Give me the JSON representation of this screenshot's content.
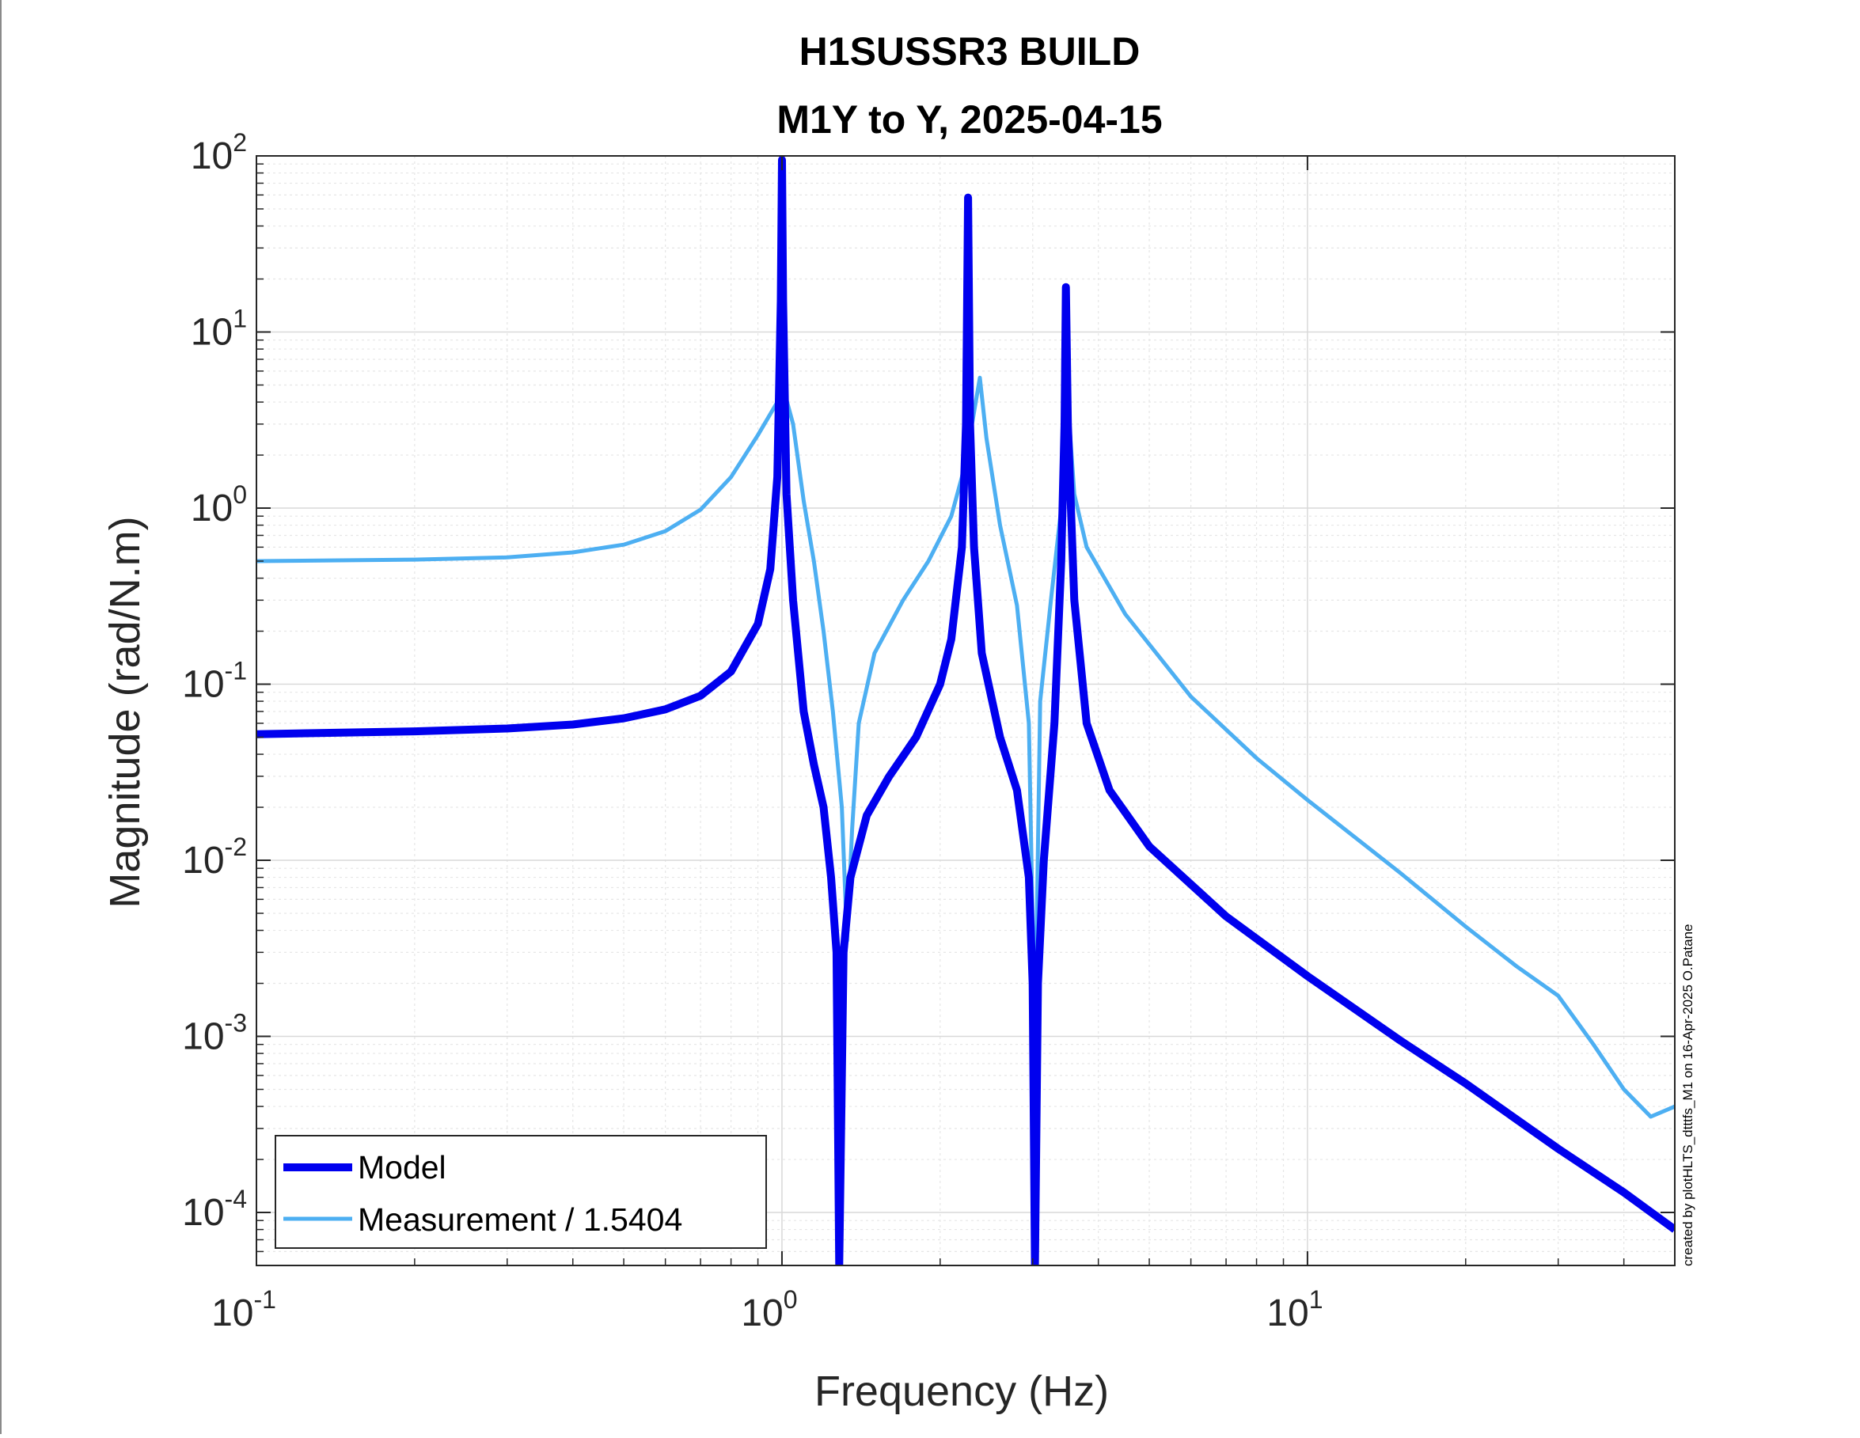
{
  "chart_data": {
    "type": "line",
    "title": "H1SUSSR3 BUILD",
    "subtitle": "M1Y to Y, 2025-04-15",
    "xlabel": "Frequency (Hz)",
    "ylabel": "Magnitude (rad/N.m)",
    "xscale": "log",
    "yscale": "log",
    "xlim": [
      0.1,
      50
    ],
    "ylim": [
      5e-05,
      100
    ],
    "x_ticks": [
      {
        "value": 0.1,
        "base": "10",
        "exp": "-1"
      },
      {
        "value": 1,
        "base": "10",
        "exp": "0"
      },
      {
        "value": 10,
        "base": "10",
        "exp": "1"
      }
    ],
    "y_ticks": [
      {
        "value": 0.0001,
        "base": "10",
        "exp": "-4"
      },
      {
        "value": 0.001,
        "base": "10",
        "exp": "-3"
      },
      {
        "value": 0.01,
        "base": "10",
        "exp": "-2"
      },
      {
        "value": 0.1,
        "base": "10",
        "exp": "-1"
      },
      {
        "value": 1,
        "base": "10",
        "exp": "0"
      },
      {
        "value": 10,
        "base": "10",
        "exp": "1"
      },
      {
        "value": 100,
        "base": "10",
        "exp": "2"
      }
    ],
    "grid": true,
    "legend_position": "bottom-left",
    "annotation": "created by plotHLTS_dtttfs_M1 on 16-Apr-2025 O.Patane",
    "series": [
      {
        "name": "Model",
        "color": "#0000ee",
        "points": [
          [
            0.1,
            0.052
          ],
          [
            0.2,
            0.054
          ],
          [
            0.3,
            0.056
          ],
          [
            0.4,
            0.059
          ],
          [
            0.5,
            0.064
          ],
          [
            0.6,
            0.072
          ],
          [
            0.7,
            0.086
          ],
          [
            0.8,
            0.118
          ],
          [
            0.9,
            0.22
          ],
          [
            0.95,
            0.45
          ],
          [
            0.98,
            1.5
          ],
          [
            0.995,
            15
          ],
          [
            1.0,
            95
          ],
          [
            1.005,
            15
          ],
          [
            1.02,
            1.2
          ],
          [
            1.05,
            0.3
          ],
          [
            1.1,
            0.07
          ],
          [
            1.15,
            0.035
          ],
          [
            1.2,
            0.02
          ],
          [
            1.24,
            0.008
          ],
          [
            1.27,
            0.003
          ],
          [
            1.285,
            5e-05
          ],
          [
            1.31,
            0.003
          ],
          [
            1.35,
            0.008
          ],
          [
            1.45,
            0.018
          ],
          [
            1.6,
            0.03
          ],
          [
            1.8,
            0.05
          ],
          [
            2.0,
            0.1
          ],
          [
            2.1,
            0.18
          ],
          [
            2.2,
            0.6
          ],
          [
            2.24,
            3
          ],
          [
            2.26,
            58
          ],
          [
            2.28,
            3
          ],
          [
            2.32,
            0.6
          ],
          [
            2.4,
            0.15
          ],
          [
            2.6,
            0.05
          ],
          [
            2.8,
            0.025
          ],
          [
            2.95,
            0.008
          ],
          [
            3.0,
            0.002
          ],
          [
            3.03,
            5e-05
          ],
          [
            3.07,
            0.002
          ],
          [
            3.15,
            0.01
          ],
          [
            3.3,
            0.06
          ],
          [
            3.4,
            0.5
          ],
          [
            3.45,
            3
          ],
          [
            3.47,
            18
          ],
          [
            3.5,
            3
          ],
          [
            3.6,
            0.3
          ],
          [
            3.8,
            0.06
          ],
          [
            4.2,
            0.025
          ],
          [
            5.0,
            0.012
          ],
          [
            7.0,
            0.0048
          ],
          [
            10.0,
            0.0022
          ],
          [
            15.0,
            0.00095
          ],
          [
            20.0,
            0.00054
          ],
          [
            30.0,
            0.00023
          ],
          [
            40.0,
            0.00013
          ],
          [
            50.0,
            8e-05
          ]
        ]
      },
      {
        "name": "Measurement / 1.5404",
        "color": "#4daff2",
        "points": [
          [
            0.1,
            0.5
          ],
          [
            0.2,
            0.51
          ],
          [
            0.3,
            0.525
          ],
          [
            0.4,
            0.56
          ],
          [
            0.5,
            0.62
          ],
          [
            0.6,
            0.74
          ],
          [
            0.7,
            0.98
          ],
          [
            0.8,
            1.5
          ],
          [
            0.9,
            2.6
          ],
          [
            0.97,
            3.8
          ],
          [
            1.01,
            4.6
          ],
          [
            1.05,
            3.0
          ],
          [
            1.1,
            1.1
          ],
          [
            1.15,
            0.5
          ],
          [
            1.2,
            0.2
          ],
          [
            1.25,
            0.07
          ],
          [
            1.3,
            0.02
          ],
          [
            1.33,
            0.0035
          ],
          [
            1.36,
            0.015
          ],
          [
            1.4,
            0.06
          ],
          [
            1.5,
            0.15
          ],
          [
            1.7,
            0.3
          ],
          [
            1.9,
            0.5
          ],
          [
            2.1,
            0.9
          ],
          [
            2.2,
            1.5
          ],
          [
            2.3,
            3
          ],
          [
            2.38,
            5.5
          ],
          [
            2.45,
            2.5
          ],
          [
            2.6,
            0.8
          ],
          [
            2.8,
            0.28
          ],
          [
            2.95,
            0.06
          ],
          [
            3.03,
            0.0009
          ],
          [
            3.1,
            0.08
          ],
          [
            3.25,
            0.3
          ],
          [
            3.4,
            1.0
          ],
          [
            3.5,
            4.0
          ],
          [
            3.6,
            1.2
          ],
          [
            3.8,
            0.6
          ],
          [
            4.5,
            0.25
          ],
          [
            6.0,
            0.085
          ],
          [
            8.0,
            0.038
          ],
          [
            10.0,
            0.022
          ],
          [
            15.0,
            0.0085
          ],
          [
            20.0,
            0.0042
          ],
          [
            25.0,
            0.0025
          ],
          [
            30.0,
            0.0017
          ],
          [
            35.0,
            0.0009
          ],
          [
            40.0,
            0.0005
          ],
          [
            45.0,
            0.00035
          ],
          [
            50.0,
            0.0004
          ]
        ]
      }
    ]
  }
}
